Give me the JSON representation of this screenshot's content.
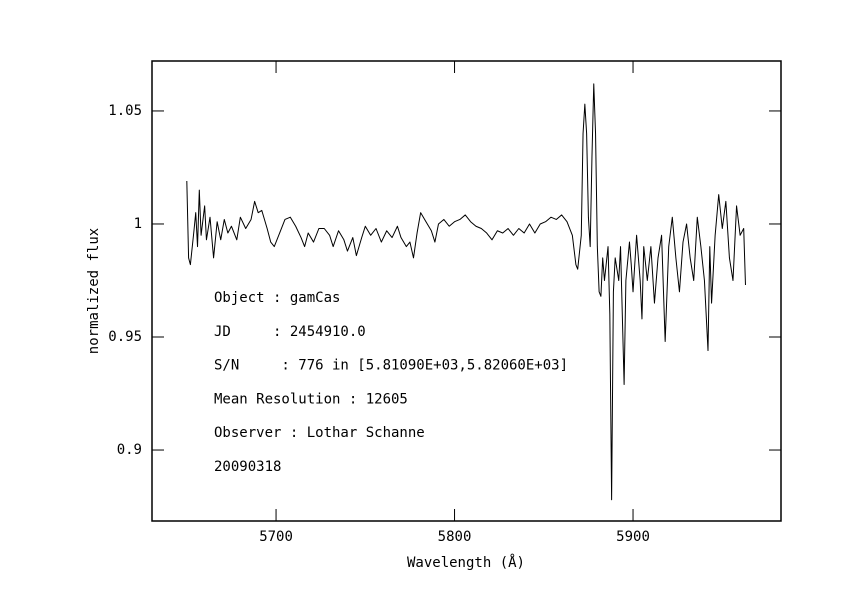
{
  "chart_data": {
    "type": "line",
    "xlabel": "Wavelength (Å)",
    "ylabel": "normalized flux",
    "annotations": [
      "Object : gamCas",
      "JD     : 2454910.0",
      "S/N     : 776 in [5.81090E+03,5.82060E+03]",
      "Mean Resolution : 12605",
      "Observer : Lothar Schanne",
      "20090318"
    ],
    "xlim": [
      5630.5,
      5982.9
    ],
    "ylim": [
      0.8686,
      1.0721
    ],
    "xticks": [
      5700,
      5800,
      5900
    ],
    "yticks": [
      0.9,
      0.95,
      1,
      1.05
    ],
    "color": "#000000",
    "grid": false,
    "x": [
      5650,
      5651,
      5652,
      5654,
      5655,
      5656,
      5657,
      5658,
      5660,
      5661,
      5663,
      5665,
      5667,
      5669,
      5671,
      5673,
      5675,
      5678,
      5680,
      5683,
      5686,
      5688,
      5690,
      5692,
      5695,
      5697,
      5699,
      5702,
      5705,
      5708,
      5711,
      5714,
      5716,
      5718,
      5721,
      5724,
      5727,
      5730,
      5732,
      5735,
      5738,
      5740,
      5743,
      5745,
      5748,
      5750,
      5753,
      5756,
      5759,
      5762,
      5765,
      5768,
      5770,
      5773,
      5775,
      5777,
      5779,
      5781,
      5784,
      5787,
      5789,
      5791,
      5794,
      5797,
      5800,
      5803,
      5806,
      5809,
      5812,
      5815,
      5818,
      5821,
      5824,
      5827,
      5830,
      5833,
      5836,
      5839,
      5842,
      5845,
      5848,
      5851,
      5854,
      5857,
      5860,
      5863,
      5866,
      5868,
      5869,
      5871,
      5872,
      5873,
      5874,
      5875,
      5876,
      5877,
      5878,
      5879,
      5880,
      5881,
      5882,
      5883,
      5884,
      5886,
      5887,
      5888,
      5889,
      5890,
      5892,
      5893,
      5895,
      5896,
      5898,
      5899,
      5900,
      5902,
      5904,
      5905,
      5906,
      5908,
      5910,
      5912,
      5914,
      5916,
      5918,
      5920,
      5922,
      5924,
      5926,
      5928,
      5930,
      5932,
      5934,
      5936,
      5938,
      5940,
      5942,
      5943,
      5944,
      5946,
      5948,
      5950,
      5952,
      5954,
      5956,
      5958,
      5960,
      5962,
      5963
    ],
    "values": [
      1.019,
      0.985,
      0.982,
      0.997,
      1.005,
      0.99,
      1.015,
      0.995,
      1.008,
      0.993,
      1.003,
      0.985,
      1.001,
      0.993,
      1.002,
      0.996,
      0.999,
      0.993,
      1.003,
      0.998,
      1.002,
      1.01,
      1.005,
      1.006,
      0.998,
      0.992,
      0.99,
      0.996,
      1.002,
      1.003,
      0.999,
      0.994,
      0.99,
      0.996,
      0.992,
      0.998,
      0.998,
      0.995,
      0.99,
      0.997,
      0.993,
      0.988,
      0.994,
      0.986,
      0.994,
      0.999,
      0.995,
      0.998,
      0.992,
      0.997,
      0.994,
      0.999,
      0.994,
      0.99,
      0.992,
      0.985,
      0.996,
      1.005,
      1.001,
      0.997,
      0.992,
      1.0,
      1.002,
      0.999,
      1.001,
      1.002,
      1.004,
      1.001,
      0.999,
      0.998,
      0.996,
      0.993,
      0.997,
      0.996,
      0.998,
      0.995,
      0.998,
      0.996,
      1.0,
      0.996,
      1.0,
      1.001,
      1.003,
      1.002,
      1.004,
      1.001,
      0.995,
      0.982,
      0.98,
      0.995,
      1.04,
      1.053,
      1.04,
      1.003,
      0.99,
      1.03,
      1.062,
      1.04,
      0.99,
      0.97,
      0.968,
      0.985,
      0.975,
      0.99,
      0.96,
      0.878,
      0.97,
      0.985,
      0.975,
      0.99,
      0.929,
      0.975,
      0.992,
      0.982,
      0.97,
      0.995,
      0.975,
      0.958,
      0.99,
      0.975,
      0.99,
      0.965,
      0.985,
      0.995,
      0.948,
      0.99,
      1.003,
      0.985,
      0.97,
      0.992,
      1.0,
      0.985,
      0.975,
      1.003,
      0.99,
      0.975,
      0.944,
      0.99,
      0.965,
      0.995,
      1.013,
      0.998,
      1.01,
      0.985,
      0.975,
      1.008,
      0.995,
      0.998,
      0.973
    ]
  }
}
